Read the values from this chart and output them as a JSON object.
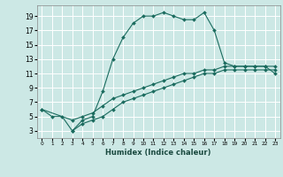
{
  "xlabel": "Humidex (Indice chaleur)",
  "background_color": "#cce8e5",
  "grid_color": "#ffffff",
  "line_color": "#1a6b5e",
  "xlim": [
    -0.5,
    23.5
  ],
  "ylim": [
    2,
    20.5
  ],
  "xticks": [
    0,
    1,
    2,
    3,
    4,
    5,
    6,
    7,
    8,
    9,
    10,
    11,
    12,
    13,
    14,
    15,
    16,
    17,
    18,
    19,
    20,
    21,
    22,
    23
  ],
  "yticks": [
    3,
    5,
    7,
    9,
    11,
    13,
    15,
    17,
    19
  ],
  "line1_x": [
    0,
    1,
    2,
    3,
    4,
    5,
    6,
    7,
    8,
    9,
    10,
    11,
    12,
    13,
    14,
    15,
    16,
    17,
    18,
    19,
    20,
    21,
    22,
    23
  ],
  "line1_y": [
    6,
    5,
    5,
    3,
    4.5,
    5,
    8.5,
    13,
    16,
    18,
    19,
    19,
    19.5,
    19,
    18.5,
    18.5,
    19.5,
    17,
    12.5,
    12,
    12,
    12,
    12,
    11
  ],
  "line2_x": [
    0,
    3,
    4,
    5,
    6,
    7,
    8,
    9,
    10,
    11,
    12,
    13,
    14,
    15,
    16,
    17,
    18,
    19,
    20,
    21,
    22,
    23
  ],
  "line2_y": [
    6,
    4.5,
    5,
    5.5,
    6.5,
    7.5,
    8,
    8.5,
    9,
    9.5,
    10,
    10.5,
    11,
    11,
    11.5,
    11.5,
    12,
    12,
    12,
    12,
    12,
    12
  ],
  "line3_x": [
    3,
    4,
    5,
    6,
    7,
    8,
    9,
    10,
    11,
    12,
    13,
    14,
    15,
    16,
    17,
    18,
    19,
    20,
    21,
    22,
    23
  ],
  "line3_y": [
    3,
    4,
    4.5,
    5,
    6,
    7,
    7.5,
    8,
    8.5,
    9,
    9.5,
    10,
    10.5,
    11,
    11,
    11.5,
    11.5,
    11.5,
    11.5,
    11.5,
    11.5
  ]
}
